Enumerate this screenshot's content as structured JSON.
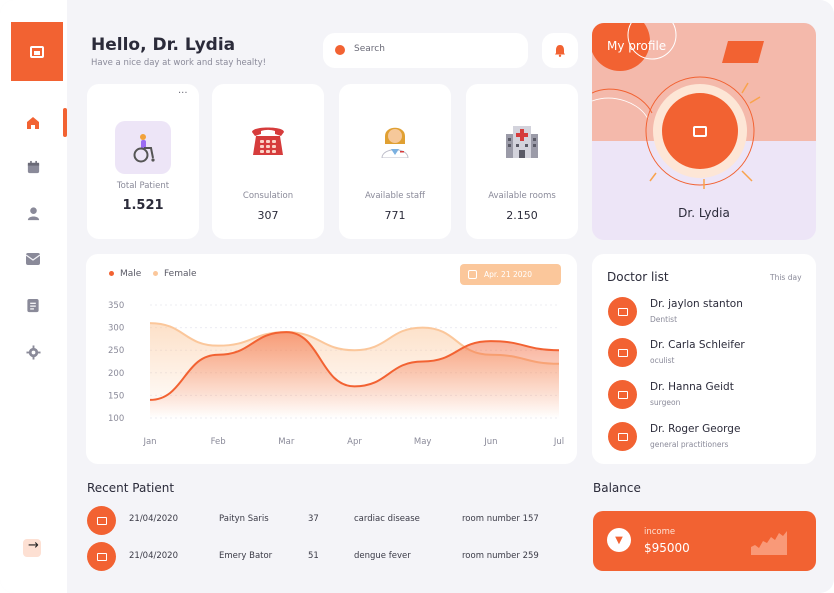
{
  "header": {
    "greeting": "Hello, Dr. Lydia",
    "subtitle": "Have a nice day at work and stay healty!",
    "search_placeholder": "Search"
  },
  "sidebar": {
    "items": [
      {
        "icon": "home-icon",
        "active": true
      },
      {
        "icon": "calendar-icon",
        "active": false
      },
      {
        "icon": "user-icon",
        "active": false
      },
      {
        "icon": "mail-icon",
        "active": false
      },
      {
        "icon": "document-icon",
        "active": false
      },
      {
        "icon": "gear-icon",
        "active": false
      }
    ],
    "logout_icon": "logout-icon"
  },
  "stats": [
    {
      "label": "Total Patient",
      "value": "1.521",
      "icon": "wheelchair-icon"
    },
    {
      "label": "Consulation",
      "value": "307",
      "icon": "telephone-icon"
    },
    {
      "label": "Available staff",
      "value": "771",
      "icon": "health-worker-icon"
    },
    {
      "label": "Available rooms",
      "value": "2.150",
      "icon": "hospital-icon"
    }
  ],
  "profile": {
    "title": "My profile",
    "name": "Dr. Lydia"
  },
  "chart_data": {
    "type": "area",
    "x": [
      "Jan",
      "Feb",
      "Mar",
      "Apr",
      "May",
      "Jun",
      "Jul"
    ],
    "ylim": [
      100,
      350
    ],
    "yticks": [
      100,
      150,
      200,
      250,
      300,
      350
    ],
    "legend_position": "top-left",
    "series": [
      {
        "name": "Male",
        "color": "#f26232",
        "values": [
          140,
          240,
          290,
          170,
          225,
          270,
          250
        ]
      },
      {
        "name": "Female",
        "color": "#fbc79b",
        "values": [
          310,
          260,
          290,
          250,
          300,
          240,
          220
        ]
      }
    ],
    "date_filter": "Apr. 21 2020"
  },
  "doctors": {
    "title": "Doctor list",
    "filter": "This day",
    "items": [
      {
        "name": "Dr. jaylon stanton",
        "role": "Dentist"
      },
      {
        "name": "Dr. Carla Schleifer",
        "role": "oculist"
      },
      {
        "name": "Dr. Hanna Geidt",
        "role": "surgeon"
      },
      {
        "name": "Dr. Roger George",
        "role": "general practitioners"
      }
    ]
  },
  "recent_patients": {
    "title": "Recent Patient",
    "rows": [
      {
        "date": "21/04/2020",
        "name": "Paityn Saris",
        "age": "37",
        "disease": "cardiac disease",
        "room": "room number 157"
      },
      {
        "date": "21/04/2020",
        "name": "Emery Bator",
        "age": "51",
        "disease": "dengue fever",
        "room": "room number 259"
      }
    ]
  },
  "balance": {
    "title": "Balance",
    "label": "income",
    "value": "$95000"
  },
  "colors": {
    "accent": "#f26232",
    "accent_light": "#fbc79b",
    "profile_top": "#f4b9ab",
    "profile_bottom": "#ede5f7"
  }
}
